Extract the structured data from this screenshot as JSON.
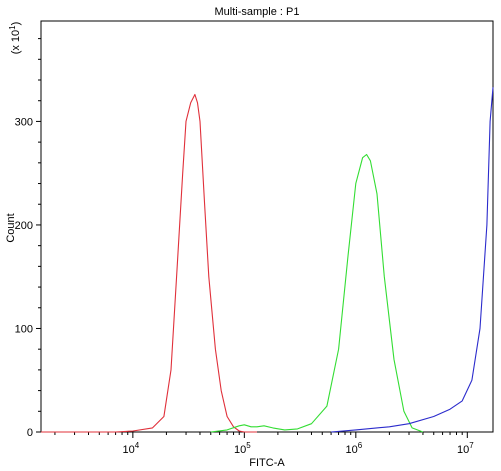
{
  "chart_data": {
    "type": "line",
    "title": "Multi-sample : P1",
    "xlabel": "FITC-A",
    "ylabel": "Count",
    "y_multiplier_label": "(x 10",
    "y_multiplier_exp": "1",
    "y_multiplier_close": ")",
    "xscale": "log",
    "xlim": [
      1500,
      17000000
    ],
    "ylim": [
      0,
      397
    ],
    "x_ticks": [
      {
        "value": 10000,
        "base": "10",
        "exp": "4"
      },
      {
        "value": 100000,
        "base": "10",
        "exp": "5"
      },
      {
        "value": 1000000,
        "base": "10",
        "exp": "6"
      },
      {
        "value": 10000000,
        "base": "10",
        "exp": "7"
      }
    ],
    "y_ticks": [
      0,
      100,
      200,
      300
    ],
    "grid": false,
    "legend": "none",
    "series": [
      {
        "color": "#e0303a",
        "points": [
          [
            1500,
            0
          ],
          [
            7000,
            0
          ],
          [
            10000,
            1
          ],
          [
            15000,
            4
          ],
          [
            19000,
            15
          ],
          [
            22000,
            60
          ],
          [
            25000,
            160
          ],
          [
            28000,
            250
          ],
          [
            30000,
            300
          ],
          [
            33000,
            318
          ],
          [
            36000,
            326
          ],
          [
            38000,
            318
          ],
          [
            40000,
            300
          ],
          [
            44000,
            220
          ],
          [
            48000,
            150
          ],
          [
            55000,
            80
          ],
          [
            62000,
            40
          ],
          [
            70000,
            15
          ],
          [
            80000,
            5
          ],
          [
            90000,
            1
          ],
          [
            100000,
            0
          ],
          [
            130000,
            0
          ]
        ]
      },
      {
        "color": "#33dd33",
        "points": [
          [
            50000,
            0
          ],
          [
            70000,
            2
          ],
          [
            90000,
            6
          ],
          [
            100000,
            7
          ],
          [
            115000,
            5
          ],
          [
            130000,
            5
          ],
          [
            150000,
            6
          ],
          [
            180000,
            4
          ],
          [
            230000,
            2
          ],
          [
            300000,
            3
          ],
          [
            400000,
            8
          ],
          [
            550000,
            25
          ],
          [
            700000,
            80
          ],
          [
            850000,
            170
          ],
          [
            1000000,
            240
          ],
          [
            1150000,
            265
          ],
          [
            1250000,
            268
          ],
          [
            1350000,
            262
          ],
          [
            1550000,
            230
          ],
          [
            1800000,
            150
          ],
          [
            2200000,
            70
          ],
          [
            2700000,
            20
          ],
          [
            3200000,
            4
          ],
          [
            4000000,
            0
          ]
        ]
      },
      {
        "color": "#2b2bcc",
        "points": [
          [
            600000,
            0
          ],
          [
            1000000,
            2
          ],
          [
            2000000,
            5
          ],
          [
            3000000,
            8
          ],
          [
            5000000,
            15
          ],
          [
            7000000,
            22
          ],
          [
            9000000,
            30
          ],
          [
            11000000,
            50
          ],
          [
            13000000,
            100
          ],
          [
            15000000,
            200
          ],
          [
            16000000,
            300
          ],
          [
            17000000,
            333
          ]
        ]
      }
    ]
  }
}
